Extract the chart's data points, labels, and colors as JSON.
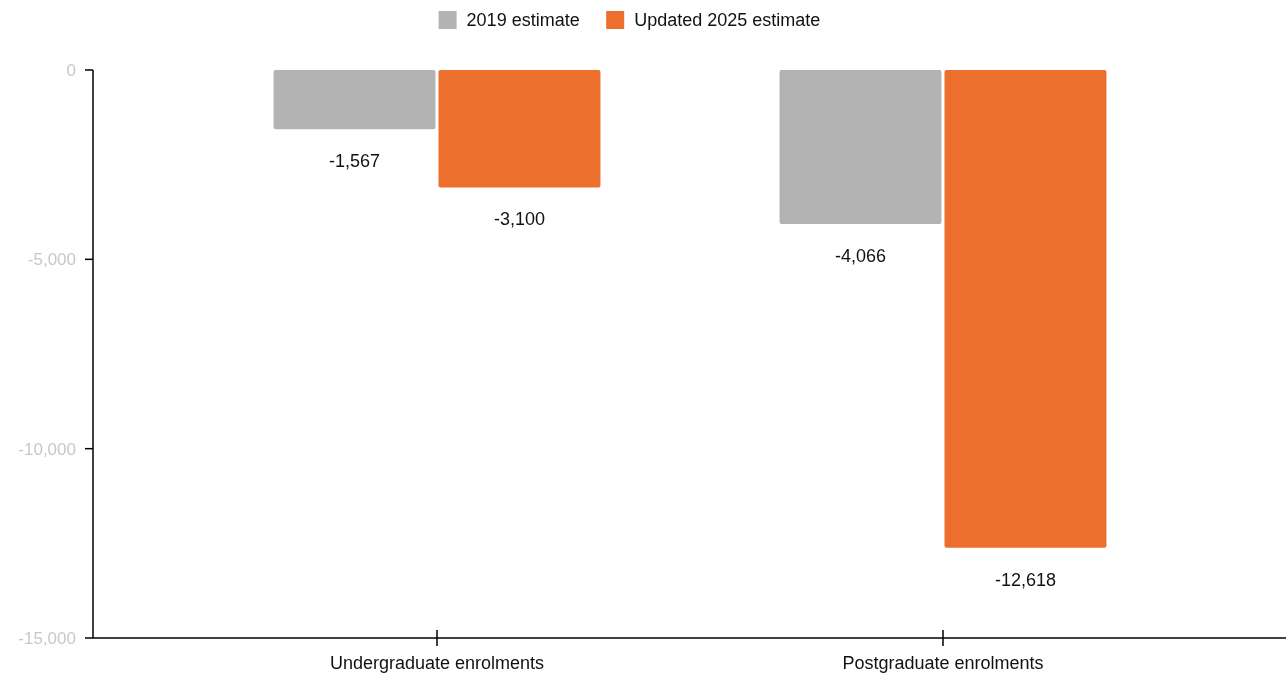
{
  "chart_data": {
    "type": "bar",
    "categories": [
      "Undergraduate enrolments",
      "Postgraduate enrolments"
    ],
    "series": [
      {
        "name": "2019 estimate",
        "color": "#b3b3b3",
        "values": [
          -1567,
          -4066
        ],
        "value_labels": [
          "-1,567",
          "-4,066"
        ]
      },
      {
        "name": "Updated 2025 estimate",
        "color": "#ec6f2d",
        "values": [
          -3100,
          -12618
        ],
        "value_labels": [
          "-3,100",
          "-12,618"
        ]
      }
    ],
    "ylim": [
      -15000,
      0
    ],
    "yticks": [
      {
        "value": -15000,
        "label": "-15,000"
      },
      {
        "value": -10000,
        "label": "-10,000"
      },
      {
        "value": -5000,
        "label": "-5,000"
      },
      0
    ],
    "legend": "top",
    "grid": false
  }
}
